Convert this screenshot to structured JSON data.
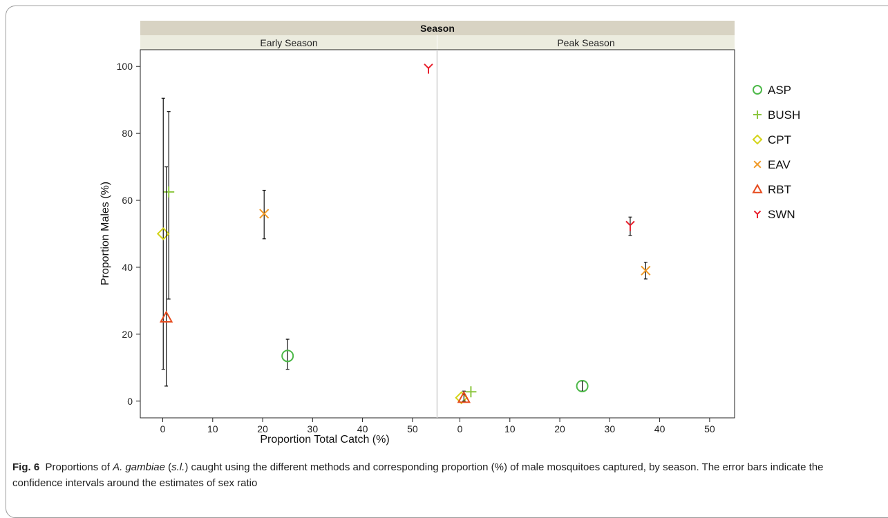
{
  "caption": {
    "fig_label": "Fig. 6",
    "text_before": "Proportions of",
    "species": "A. gambiae",
    "paren_open": "(",
    "sl": "s.l.",
    "text_after": ") caught using the different methods and corresponding proportion (%) of male mosquitoes captured, by season. The error bars indicate the confidence intervals around the estimates of sex ratio"
  },
  "chart_data": {
    "type": "scatter",
    "facet_title": "Season",
    "facets": [
      "Early Season",
      "Peak Season"
    ],
    "xlabel": "Proportion Total Catch (%)",
    "ylabel": "Proportion Males (%)",
    "xlim": [
      -4.5,
      55
    ],
    "ylim": [
      -5,
      105
    ],
    "xticks": [
      0,
      10,
      20,
      30,
      40,
      50
    ],
    "yticks": [
      0,
      20,
      40,
      60,
      80,
      100
    ],
    "legend_position": "right",
    "series": [
      {
        "name": "ASP",
        "marker": "circle",
        "color": "#4cb848",
        "points": [
          {
            "facet": "Early Season",
            "x": 25,
            "y": 13.5,
            "ci": [
              9.5,
              18.5
            ]
          },
          {
            "facet": "Peak Season",
            "x": 24.5,
            "y": 4.5,
            "ci": [
              3,
              6
            ]
          }
        ]
      },
      {
        "name": "BUSH",
        "marker": "plus",
        "color": "#8cc63f",
        "points": [
          {
            "facet": "Early Season",
            "x": 1.2,
            "y": 62.5,
            "ci": [
              30.5,
              86.5
            ]
          },
          {
            "facet": "Peak Season",
            "x": 2.2,
            "y": 2.8,
            "ci": null
          }
        ]
      },
      {
        "name": "CPT",
        "marker": "diamond",
        "color": "#d4d418",
        "points": [
          {
            "facet": "Early Season",
            "x": 0.1,
            "y": 50,
            "ci": [
              9.5,
              90.5
            ]
          },
          {
            "facet": "Peak Season",
            "x": 0.3,
            "y": 1,
            "ci": null
          }
        ]
      },
      {
        "name": "EAV",
        "marker": "x",
        "color": "#f09a28",
        "points": [
          {
            "facet": "Early Season",
            "x": 20.3,
            "y": 56,
            "ci": [
              48.5,
              63
            ]
          },
          {
            "facet": "Peak Season",
            "x": 37.2,
            "y": 39,
            "ci": [
              36.5,
              41.5
            ]
          }
        ]
      },
      {
        "name": "RBT",
        "marker": "triangle",
        "color": "#e64b1e",
        "points": [
          {
            "facet": "Early Season",
            "x": 0.7,
            "y": 25,
            "ci": [
              4.5,
              70
            ]
          },
          {
            "facet": "Peak Season",
            "x": 0.8,
            "y": 1,
            "ci": [
              0,
              3
            ]
          }
        ]
      },
      {
        "name": "SWN",
        "marker": "y",
        "color": "#e8212e",
        "points": [
          {
            "facet": "Early Season",
            "x": 53.2,
            "y": 99.5,
            "ci": null
          },
          {
            "facet": "Peak Season",
            "x": 34.1,
            "y": 52.5,
            "ci": [
              49.5,
              55
            ]
          }
        ]
      }
    ]
  }
}
